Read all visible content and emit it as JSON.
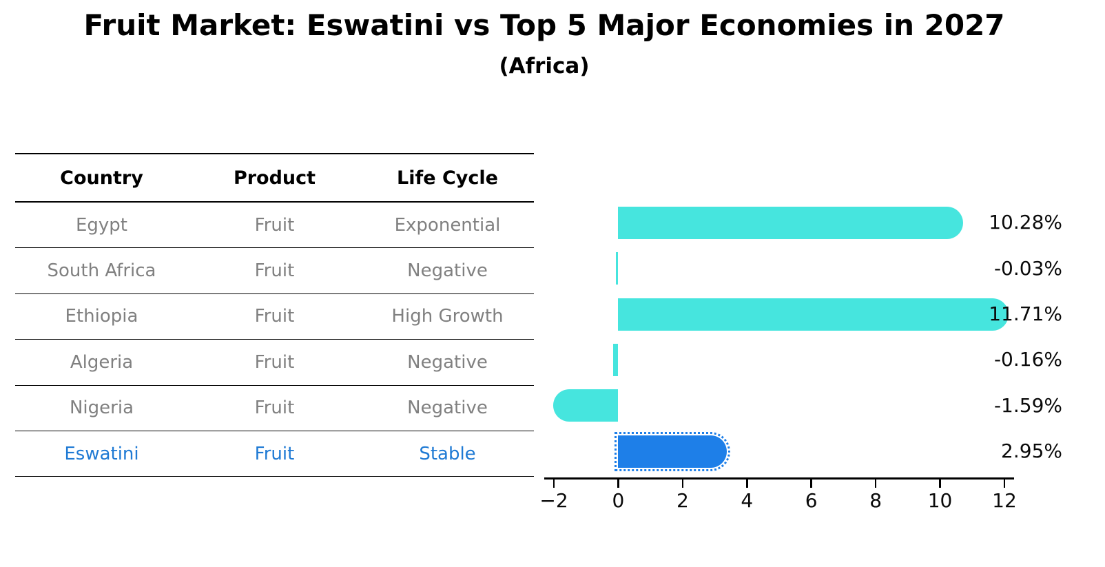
{
  "title": "Fruit Market: Eswatini vs Top 5 Major Economies in 2027",
  "subtitle": "(Africa)",
  "table": {
    "headers": [
      "Country",
      "Product",
      "Life Cycle"
    ],
    "rows": [
      {
        "country": "Egypt",
        "product": "Fruit",
        "life_cycle": "Exponential",
        "highlight": false
      },
      {
        "country": "South Africa",
        "product": "Fruit",
        "life_cycle": "Negative",
        "highlight": false
      },
      {
        "country": "Ethiopia",
        "product": "Fruit",
        "life_cycle": "High Growth",
        "highlight": false
      },
      {
        "country": "Algeria",
        "product": "Fruit",
        "life_cycle": "Negative",
        "highlight": false
      },
      {
        "country": "Nigeria",
        "product": "Fruit",
        "life_cycle": "Negative",
        "highlight": false
      },
      {
        "country": "Eswatini",
        "product": "Fruit",
        "life_cycle": "Stable",
        "highlight": true
      }
    ]
  },
  "chart_data": {
    "type": "bar",
    "orientation": "horizontal",
    "title": "Fruit Market: Eswatini vs Top 5 Major Economies in 2027",
    "subtitle": "(Africa)",
    "categories": [
      "Egypt",
      "South Africa",
      "Ethiopia",
      "Algeria",
      "Nigeria",
      "Eswatini"
    ],
    "values": [
      10.28,
      -0.03,
      11.71,
      -0.16,
      -1.59,
      2.95
    ],
    "value_labels": [
      "10.28%",
      "-0.03%",
      "11.71%",
      "-0.16%",
      "-1.59%",
      "2.95%"
    ],
    "highlight_category": "Eswatini",
    "xlim": [
      -2.3,
      12.3
    ],
    "xticks": [
      -2,
      0,
      2,
      4,
      6,
      8,
      10,
      12
    ],
    "xtick_labels": [
      "−2",
      "0",
      "2",
      "4",
      "6",
      "8",
      "10",
      "12"
    ],
    "grid": false,
    "legend": false,
    "colors": {
      "bar_default": "#46E5DE",
      "bar_highlight": "#1E7FE8",
      "highlight_text": "#1F7AD4",
      "row_text": "#808080",
      "axis": "#000000"
    }
  }
}
